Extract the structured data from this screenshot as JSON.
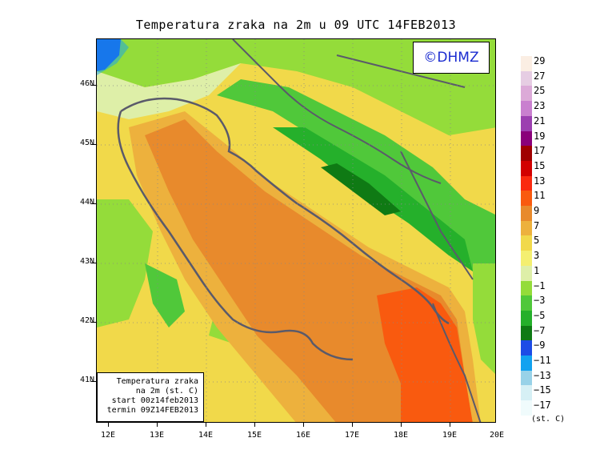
{
  "title": "Temperatura zraka na 2m u 09 UTC 14FEB2013",
  "copyright": "©DHMZ",
  "info": {
    "line1": "Temperatura zraka",
    "line2": "na 2m (st. C)",
    "line3": "start 00z14feb2013",
    "line4": "termin 09Z14FEB2013"
  },
  "axes": {
    "lat_labels": [
      "46N",
      "45N",
      "44N",
      "43N",
      "42N",
      "41N"
    ],
    "lon_labels": [
      "12E",
      "13E",
      "14E",
      "15E",
      "16E",
      "17E",
      "18E",
      "19E",
      "20E"
    ]
  },
  "legend": {
    "units": "(st. C)",
    "labels": [
      "29",
      "27",
      "25",
      "23",
      "21",
      "19",
      "17",
      "15",
      "13",
      "11",
      "9",
      "7",
      "5",
      "3",
      "1",
      "−1",
      "−3",
      "−5",
      "−7",
      "−9",
      "−11",
      "−13",
      "−15",
      "−17"
    ],
    "colors": [
      "#fbeee3",
      "#e6cde3",
      "#dcaad8",
      "#c980cf",
      "#9c40b0",
      "#8a007a",
      "#a00000",
      "#d20000",
      "#fa2a10",
      "#f95a0f",
      "#e88a2c",
      "#edb13d",
      "#f1d94a",
      "#f4ef70",
      "#deefa8",
      "#94dc3a",
      "#50c83a",
      "#25b02b",
      "#0f7a14",
      "#1d4ce6",
      "#12a2f0",
      "#98d2e8",
      "#d6f0f5",
      "#f0fbfc"
    ]
  },
  "colors": {
    "title_text": "#000000",
    "copyright_text": "#1a2bd0",
    "coastline": "#5a5a6a"
  }
}
